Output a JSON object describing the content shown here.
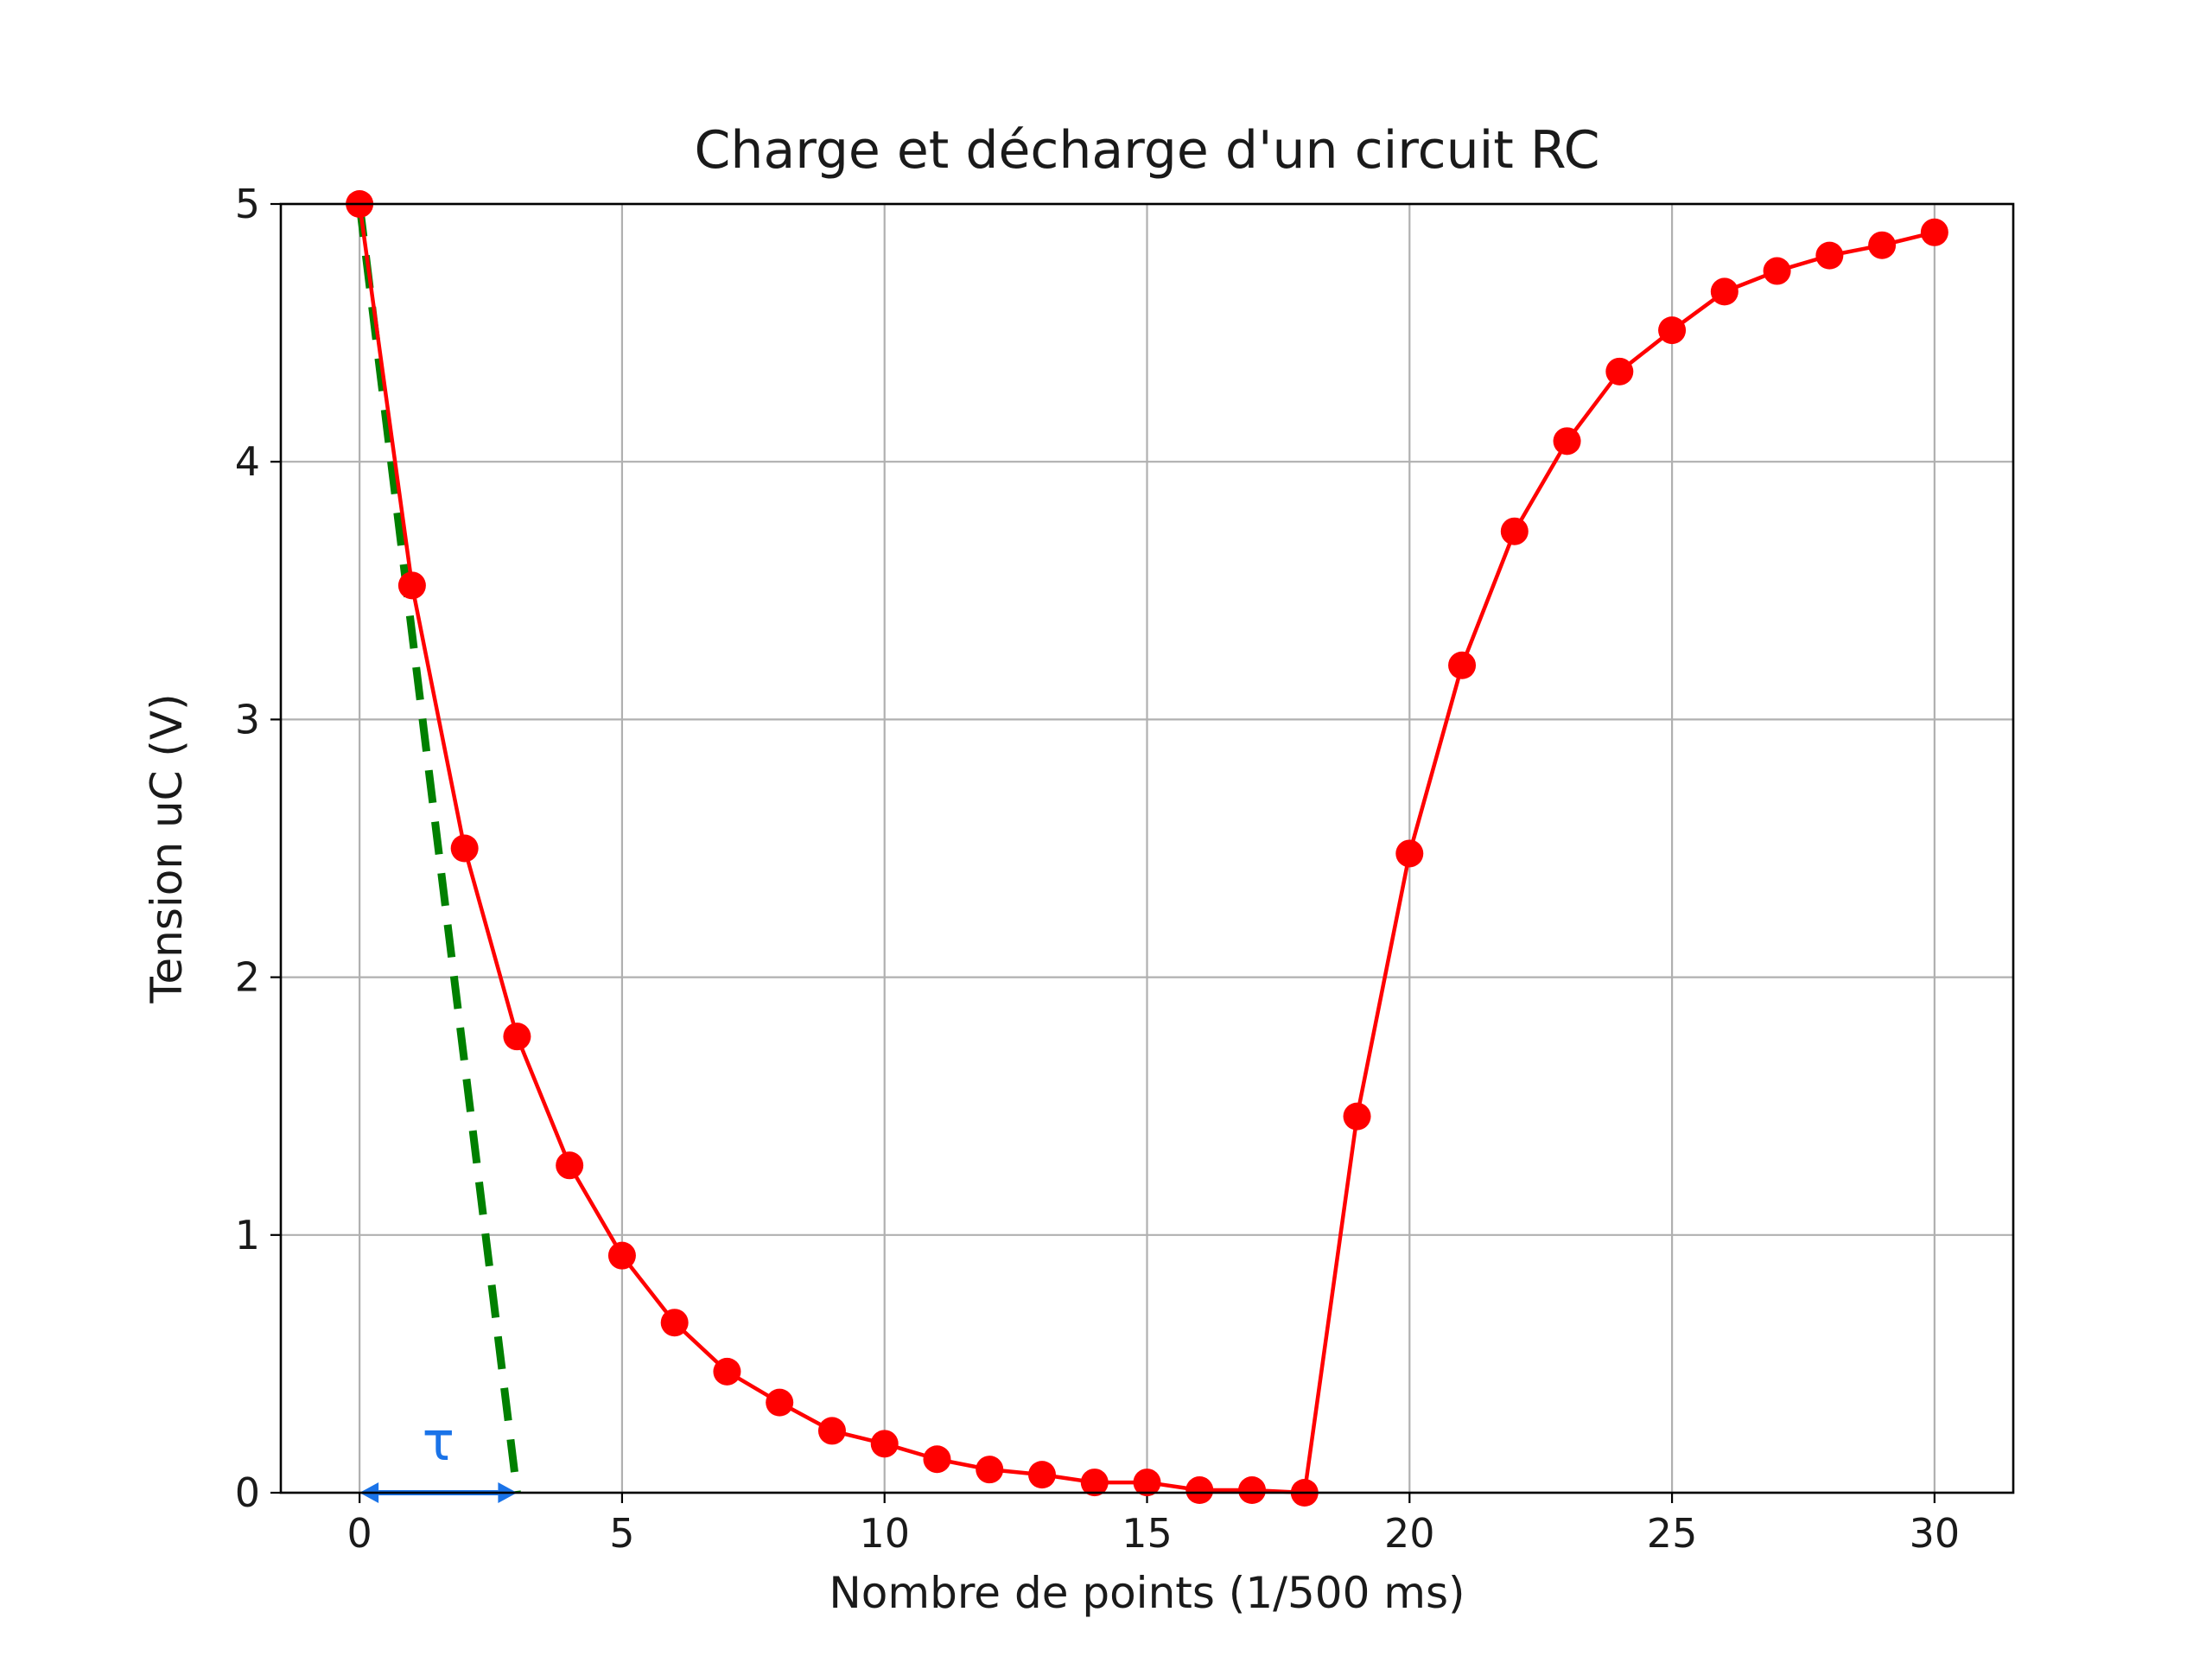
{
  "chart_data": {
    "type": "line",
    "title": "Charge et décharge d'un circuit RC",
    "xlabel": "Nombre de points (1/500 ms)",
    "ylabel": "Tension uC (V)",
    "xlim": [
      -1.5,
      31.5
    ],
    "ylim": [
      0,
      5
    ],
    "xticks": [
      0,
      5,
      10,
      15,
      20,
      25,
      30
    ],
    "yticks": [
      0,
      1,
      2,
      3,
      4,
      5
    ],
    "grid": true,
    "series": [
      {
        "color": "#ff0000",
        "marker": "circle",
        "x": [
          0,
          1,
          2,
          3,
          4,
          5,
          6,
          7,
          8,
          9,
          10,
          11,
          12,
          13,
          14,
          15,
          16,
          17,
          18,
          19,
          20,
          21,
          22,
          23,
          24,
          25,
          26,
          27,
          28,
          29,
          30
        ],
        "y": [
          5.0,
          3.52,
          2.5,
          1.77,
          1.27,
          0.92,
          0.66,
          0.47,
          0.35,
          0.24,
          0.19,
          0.13,
          0.09,
          0.07,
          0.04,
          0.04,
          0.01,
          0.01,
          0.0,
          1.46,
          2.48,
          3.21,
          3.73,
          4.08,
          4.35,
          4.51,
          4.66,
          4.74,
          4.8,
          4.84,
          4.89
        ]
      }
    ],
    "annotations": {
      "tangent": {
        "color": "#008000",
        "style": "dashed",
        "x": [
          0,
          3
        ],
        "y": [
          5,
          0
        ]
      },
      "tau_arrow": {
        "color": "#1a73e8",
        "label": "τ",
        "x": [
          0,
          3
        ],
        "y": 0
      }
    }
  }
}
